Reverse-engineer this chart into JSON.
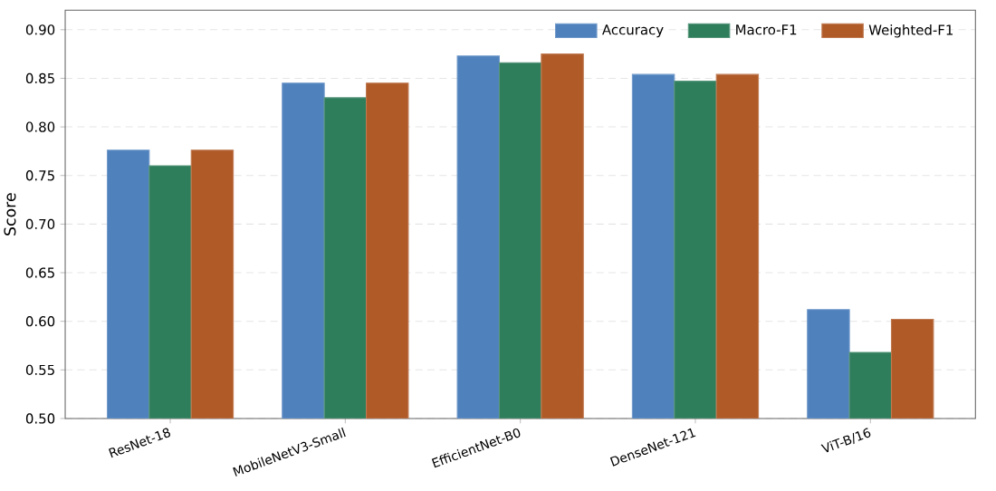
{
  "chart_data": {
    "type": "bar",
    "ylabel": "Score",
    "categories": [
      "ResNet-18",
      "MobileNetV3-Small",
      "EfficientNet-B0",
      "DenseNet-121",
      "ViT-B/16"
    ],
    "series": [
      {
        "name": "Accuracy",
        "color": "#4f81bd",
        "values": [
          0.776,
          0.845,
          0.873,
          0.854,
          0.612
        ]
      },
      {
        "name": "Macro-F1",
        "color": "#2e7d5b",
        "values": [
          0.76,
          0.83,
          0.866,
          0.847,
          0.568
        ]
      },
      {
        "name": "Weighted-F1",
        "color": "#b05a28",
        "values": [
          0.776,
          0.845,
          0.875,
          0.854,
          0.602
        ]
      }
    ],
    "ylim": [
      0.5,
      0.92
    ],
    "yticks": [
      {
        "value": 0.5,
        "label": "0.50"
      },
      {
        "value": 0.55,
        "label": "0.55"
      },
      {
        "value": 0.6,
        "label": "0.60"
      },
      {
        "value": 0.65,
        "label": "0.65"
      },
      {
        "value": 0.7,
        "label": "0.70"
      },
      {
        "value": 0.75,
        "label": "0.75"
      },
      {
        "value": 0.8,
        "label": "0.80"
      },
      {
        "value": 0.85,
        "label": "0.85"
      },
      {
        "value": 0.9,
        "label": "0.90"
      }
    ],
    "grid": "y",
    "legend": "top right"
  }
}
